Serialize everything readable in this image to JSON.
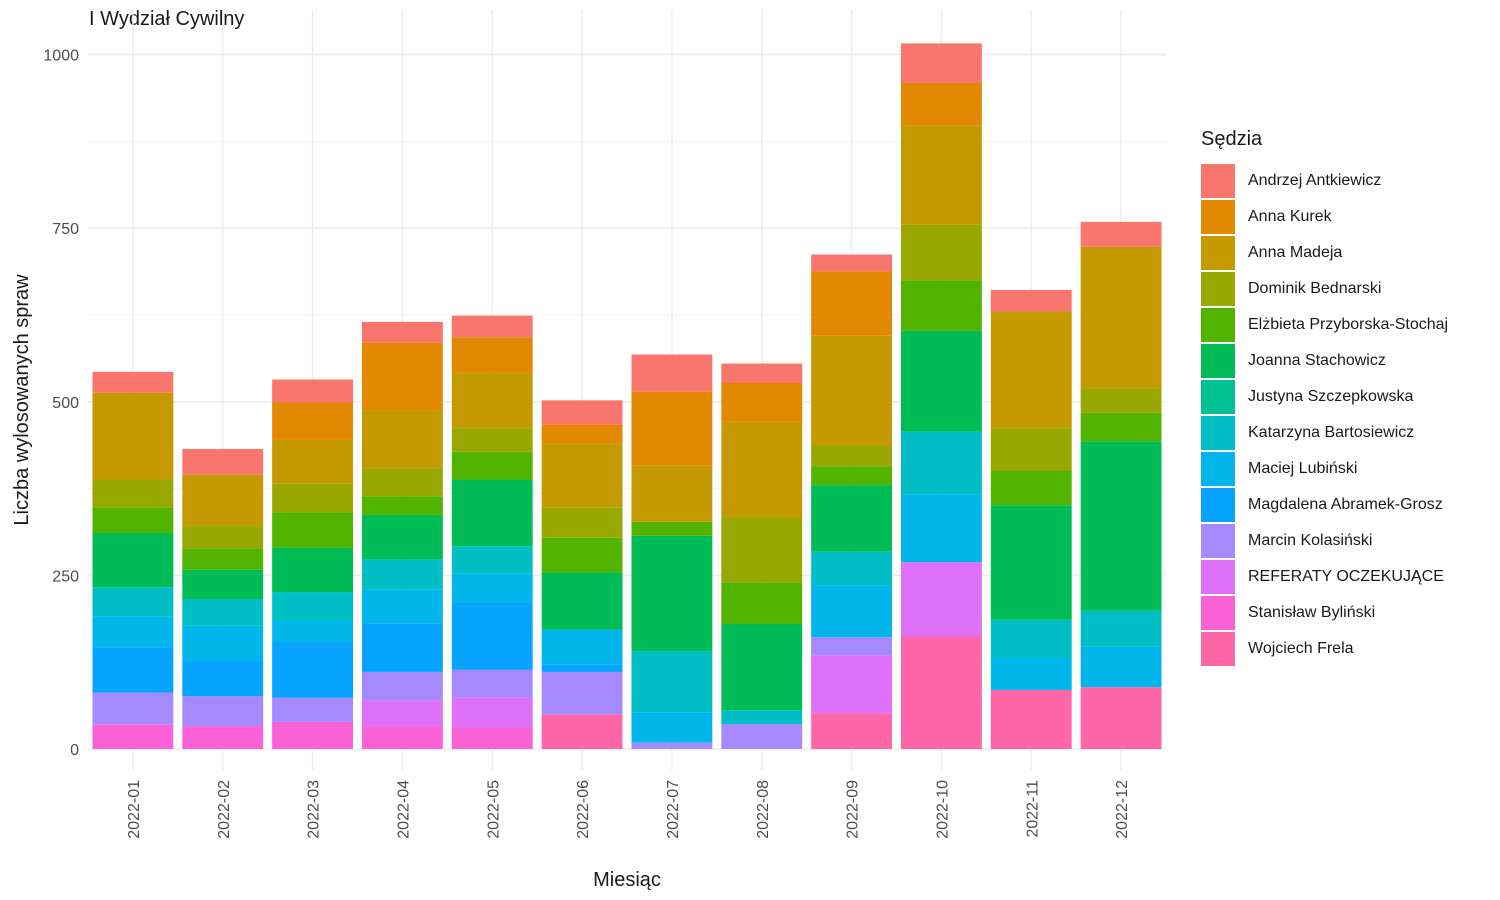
{
  "chart_data": {
    "type": "bar",
    "stacked": true,
    "title": "I Wydział Cywilny",
    "xlabel": "Miesiąc",
    "ylabel": "Liczba wylosowanych spraw",
    "ylim": [
      0,
      1000
    ],
    "yticks": [
      "0",
      "250",
      "500",
      "750",
      "1000"
    ],
    "grid": true,
    "legend_title": "Sędzia",
    "legend_position": "right",
    "categories": [
      "2022-01",
      "2022-02",
      "2022-03",
      "2022-04",
      "2022-05",
      "2022-06",
      "2022-07",
      "2022-08",
      "2022-09",
      "2022-10",
      "2022-11",
      "2022-12"
    ],
    "series": [
      {
        "name": "Andrzej Antkiewicz",
        "color": "#F8766D",
        "values": [
          30,
          37,
          33,
          30,
          31,
          35,
          53,
          28,
          24,
          57,
          31,
          36
        ]
      },
      {
        "name": "Anna Kurek",
        "color": "#E38900",
        "values": [
          0,
          0,
          54,
          97,
          51,
          27,
          107,
          56,
          93,
          61,
          0,
          0
        ]
      },
      {
        "name": "Anna Madeja",
        "color": "#C49A00",
        "values": [
          125,
          74,
          63,
          84,
          80,
          92,
          81,
          137,
          158,
          143,
          168,
          204
        ]
      },
      {
        "name": "Dominik Bednarski",
        "color": "#99A800",
        "values": [
          40,
          32,
          41,
          40,
          34,
          44,
          0,
          94,
          30,
          80,
          61,
          35
        ]
      },
      {
        "name": "Elżbieta Przyborska-Stochaj",
        "color": "#53B400",
        "values": [
          37,
          31,
          51,
          27,
          40,
          50,
          20,
          60,
          27,
          73,
          50,
          41
        ]
      },
      {
        "name": "Joanna Stachowicz",
        "color": "#00BC56",
        "values": [
          78,
          42,
          64,
          64,
          96,
          82,
          166,
          124,
          96,
          145,
          165,
          244
        ]
      },
      {
        "name": "Justyna Szczepkowska",
        "color": "#00C094",
        "values": [
          0,
          0,
          0,
          0,
          0,
          0,
          0,
          0,
          0,
          0,
          0,
          0
        ]
      },
      {
        "name": "Katarzyna Bartosiewicz",
        "color": "#00BFC4",
        "values": [
          42,
          38,
          41,
          43,
          39,
          0,
          88,
          20,
          48,
          90,
          55,
          52
        ]
      },
      {
        "name": "Maciej Lubiński",
        "color": "#00B6EB",
        "values": [
          45,
          52,
          31,
          49,
          42,
          50,
          44,
          0,
          75,
          98,
          46,
          58
        ]
      },
      {
        "name": "Magdalena Abramek-Grosz",
        "color": "#06A4FF",
        "values": [
          65,
          50,
          80,
          70,
          97,
          11,
          0,
          0,
          0,
          0,
          0,
          0
        ]
      },
      {
        "name": "Marcin Kolasiński",
        "color": "#A58AFF",
        "values": [
          46,
          43,
          35,
          41,
          40,
          61,
          9,
          36,
          26,
          0,
          0,
          0
        ]
      },
      {
        "name": "REFERATY OCZEKUJĄCE",
        "color": "#DF70F8",
        "values": [
          0,
          0,
          0,
          37,
          43,
          0,
          0,
          0,
          84,
          107,
          0,
          0
        ]
      },
      {
        "name": "Stanisław Byliński",
        "color": "#FB61D7",
        "values": [
          35,
          33,
          39,
          33,
          31,
          0,
          0,
          0,
          0,
          0,
          0,
          0
        ]
      },
      {
        "name": "Wojciech Frela",
        "color": "#FF66A8",
        "values": [
          0,
          0,
          0,
          0,
          0,
          50,
          0,
          0,
          51,
          162,
          85,
          89
        ]
      }
    ]
  }
}
